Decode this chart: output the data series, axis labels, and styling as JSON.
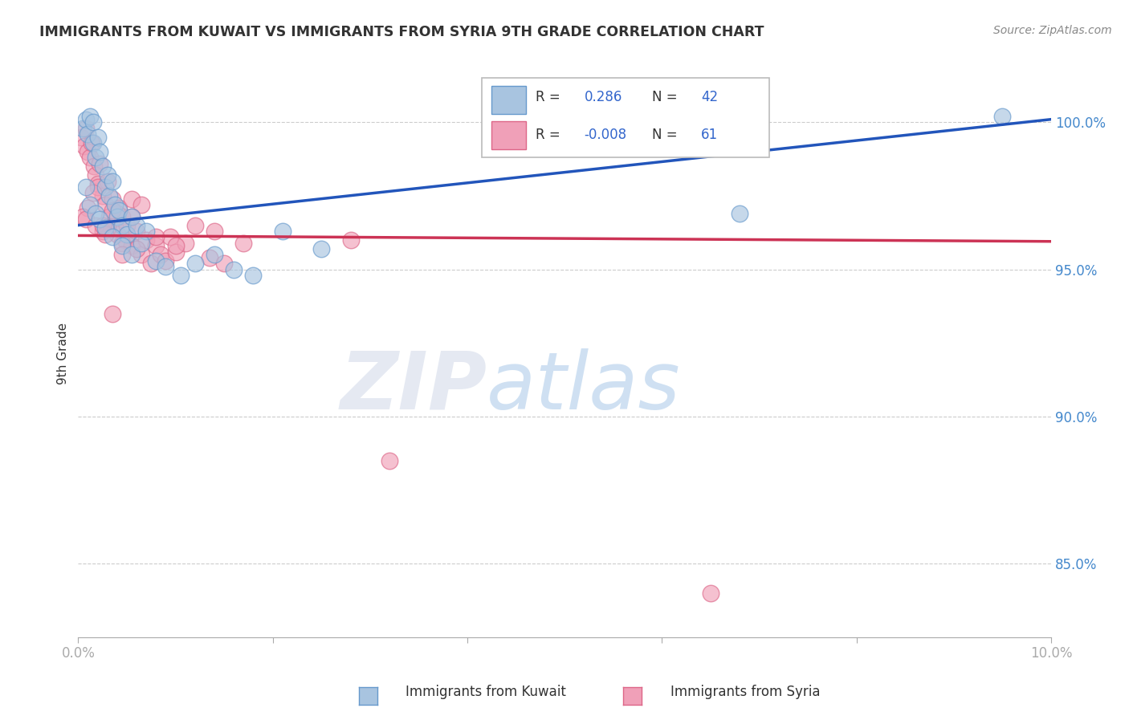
{
  "title": "IMMIGRANTS FROM KUWAIT VS IMMIGRANTS FROM SYRIA 9TH GRADE CORRELATION CHART",
  "source": "Source: ZipAtlas.com",
  "ylabel": "9th Grade",
  "xlim": [
    0.0,
    10.0
  ],
  "ylim": [
    82.5,
    101.8
  ],
  "y_ticks": [
    85.0,
    90.0,
    95.0,
    100.0
  ],
  "y_tick_labels": [
    "85.0%",
    "90.0%",
    "95.0%",
    "100.0%"
  ],
  "kuwait_R": 0.286,
  "kuwait_N": 42,
  "syria_R": -0.008,
  "syria_N": 61,
  "kuwait_color": "#a8c4e0",
  "kuwait_edge_color": "#6699cc",
  "syria_color": "#f0a0b8",
  "syria_edge_color": "#dd6688",
  "kuwait_line_color": "#2255bb",
  "syria_line_color": "#cc3355",
  "kuwait_line_y0": 96.5,
  "kuwait_line_y1": 100.1,
  "syria_line_y0": 96.15,
  "syria_line_y1": 95.95,
  "kuwait_scatter_x": [
    0.05,
    0.08,
    0.1,
    0.12,
    0.15,
    0.15,
    0.18,
    0.2,
    0.22,
    0.25,
    0.28,
    0.3,
    0.32,
    0.35,
    0.38,
    0.4,
    0.42,
    0.45,
    0.5,
    0.55,
    0.6,
    0.7,
    0.08,
    0.12,
    0.18,
    0.22,
    0.28,
    0.35,
    0.45,
    0.55,
    0.65,
    0.8,
    0.9,
    1.05,
    1.2,
    1.4,
    1.6,
    1.8,
    2.1,
    2.5,
    6.8,
    9.5
  ],
  "kuwait_scatter_y": [
    99.8,
    100.1,
    99.6,
    100.2,
    100.0,
    99.3,
    98.8,
    99.5,
    99.0,
    98.5,
    97.8,
    98.2,
    97.5,
    98.0,
    97.2,
    96.8,
    97.0,
    96.5,
    96.2,
    96.8,
    96.5,
    96.3,
    97.8,
    97.2,
    96.9,
    96.7,
    96.4,
    96.1,
    95.8,
    95.5,
    95.9,
    95.3,
    95.1,
    94.8,
    95.2,
    95.5,
    95.0,
    94.8,
    96.3,
    95.7,
    96.9,
    100.2
  ],
  "syria_scatter_x": [
    0.03,
    0.06,
    0.08,
    0.1,
    0.12,
    0.14,
    0.16,
    0.18,
    0.2,
    0.22,
    0.25,
    0.28,
    0.3,
    0.32,
    0.35,
    0.38,
    0.4,
    0.42,
    0.45,
    0.48,
    0.5,
    0.55,
    0.6,
    0.65,
    0.7,
    0.75,
    0.8,
    0.85,
    0.9,
    0.95,
    1.0,
    1.1,
    1.2,
    1.35,
    1.5,
    1.7,
    0.1,
    0.2,
    0.3,
    0.4,
    0.6,
    0.8,
    1.0,
    1.4,
    0.05,
    0.15,
    0.25,
    0.35,
    0.45,
    0.55,
    0.65,
    0.08,
    0.18,
    0.28,
    0.45,
    2.8,
    0.35,
    0.55,
    3.2,
    6.5,
    0.25
  ],
  "syria_scatter_y": [
    99.5,
    99.2,
    99.8,
    99.0,
    98.8,
    99.3,
    98.5,
    98.2,
    97.9,
    98.6,
    97.5,
    97.2,
    98.0,
    96.8,
    97.4,
    96.5,
    96.2,
    97.1,
    96.8,
    96.0,
    96.5,
    95.8,
    96.3,
    95.5,
    96.0,
    95.2,
    95.8,
    95.5,
    95.3,
    96.1,
    95.6,
    95.9,
    96.5,
    95.4,
    95.2,
    95.9,
    97.1,
    97.8,
    96.4,
    96.9,
    95.7,
    96.1,
    95.8,
    96.3,
    96.8,
    97.6,
    96.3,
    97.0,
    95.9,
    97.4,
    97.2,
    96.7,
    96.5,
    96.2,
    95.5,
    96.0,
    93.5,
    96.8,
    88.5,
    84.0,
    96.5
  ],
  "watermark_zip": "ZIP",
  "watermark_atlas": "atlas",
  "background_color": "#ffffff",
  "grid_color": "#cccccc",
  "title_color": "#333333",
  "source_color": "#888888",
  "tick_color": "#4488cc",
  "legend_text_color": "#333333",
  "legend_value_color": "#3366cc"
}
